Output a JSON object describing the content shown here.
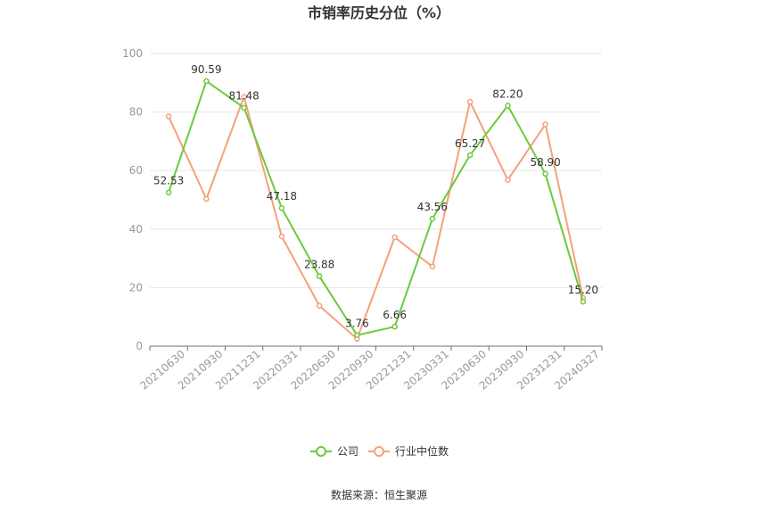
{
  "chart_data": {
    "type": "line",
    "title": "市销率历史分位（%）",
    "xlabel": "",
    "ylabel": "",
    "ylim": [
      0,
      100
    ],
    "y_ticks": [
      0,
      20,
      40,
      60,
      80,
      100
    ],
    "grid": true,
    "legend_position": "bottom",
    "categories": [
      "20210630",
      "20210930",
      "20211231",
      "20220331",
      "20220630",
      "20220930",
      "20221231",
      "20230331",
      "20230630",
      "20230930",
      "20231231",
      "20240327"
    ],
    "series": [
      {
        "name": "公司",
        "color": "#6cc93c",
        "values": [
          52.53,
          90.59,
          81.48,
          47.18,
          23.88,
          3.76,
          6.66,
          43.56,
          65.27,
          82.2,
          58.9,
          15.2
        ],
        "labels": [
          "52.53",
          "90.59",
          "81.48",
          "47.18",
          "23.88",
          "3.76",
          "6.66",
          "43.56",
          "65.27",
          "82.20",
          "58.90",
          "15.20"
        ]
      },
      {
        "name": "行业中位数",
        "color": "#f5a07a",
        "values": [
          78.5,
          50.3,
          85.2,
          37.5,
          13.8,
          2.5,
          37.2,
          27.2,
          83.5,
          56.8,
          75.8,
          16.5
        ]
      }
    ]
  },
  "source_text": "数据来源：恒生聚源"
}
